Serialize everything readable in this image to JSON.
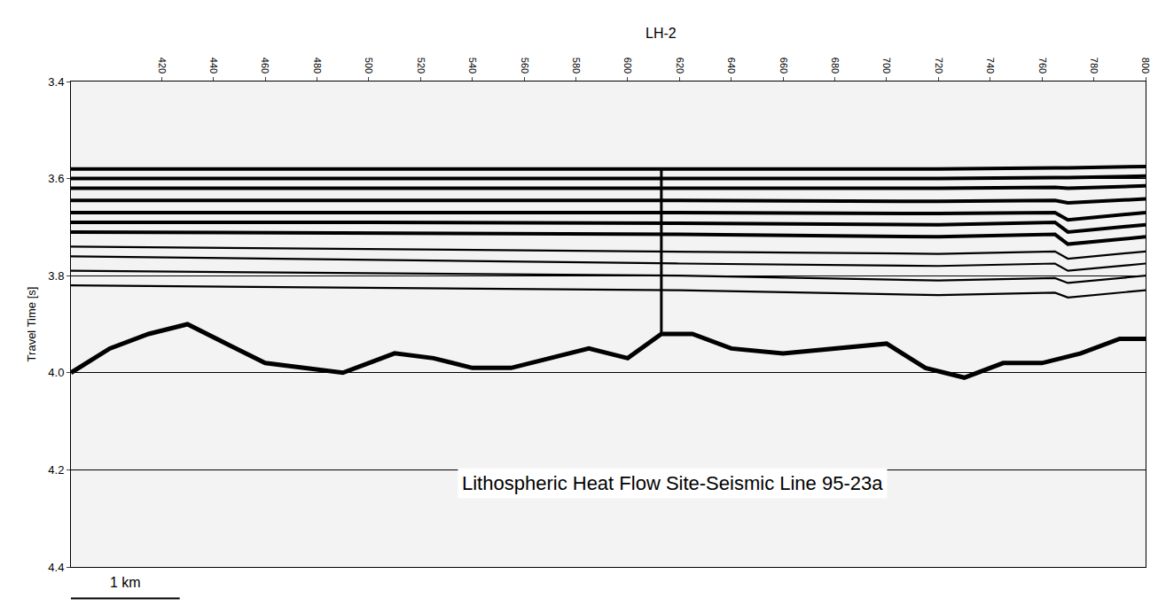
{
  "chart_data": {
    "type": "line",
    "title": "LH-2",
    "y_label": "Travel Time [s]",
    "annotation": "Lithospheric Heat Flow Site-Seismic Line 95-23a",
    "xlim": [
      385,
      800
    ],
    "xticks": [
      420,
      440,
      460,
      480,
      500,
      520,
      540,
      560,
      580,
      600,
      620,
      640,
      660,
      680,
      700,
      720,
      740,
      760,
      780,
      800
    ],
    "ylim": [
      3.4,
      4.4
    ],
    "yticks": [
      3.4,
      3.6,
      3.8,
      {
        "value": 4,
        "label": "4.0"
      },
      4.2,
      4.4
    ],
    "grid": true,
    "borehole": {
      "x": 613,
      "top": 3.58,
      "bottom": 3.92
    },
    "scale_bar": {
      "label": "1 km",
      "x0": 385,
      "x1": 427
    },
    "series": [
      {
        "color": "#000000",
        "x": [
          385,
          500,
          620,
          720,
          765,
          770,
          800
        ],
        "values": [
          3.58,
          3.58,
          3.58,
          3.58,
          3.578,
          3.578,
          3.575
        ]
      },
      {
        "color": "#000000",
        "x": [
          385,
          500,
          620,
          720,
          765,
          770,
          800
        ],
        "values": [
          3.6,
          3.6,
          3.6,
          3.6,
          3.598,
          3.598,
          3.595
        ]
      },
      {
        "color": "#000000",
        "x": [
          385,
          500,
          620,
          720,
          765,
          770,
          800
        ],
        "values": [
          3.62,
          3.62,
          3.62,
          3.62,
          3.618,
          3.62,
          3.615
        ]
      },
      {
        "color": "#000000",
        "x": [
          385,
          500,
          620,
          720,
          765,
          770,
          800
        ],
        "values": [
          3.645,
          3.645,
          3.645,
          3.647,
          3.645,
          3.65,
          3.642
        ]
      },
      {
        "color": "#000000",
        "x": [
          385,
          500,
          620,
          720,
          765,
          770,
          800
        ],
        "values": [
          3.67,
          3.67,
          3.67,
          3.672,
          3.67,
          3.685,
          3.67
        ]
      },
      {
        "color": "#000000",
        "x": [
          385,
          500,
          620,
          720,
          765,
          770,
          800
        ],
        "values": [
          3.69,
          3.69,
          3.692,
          3.695,
          3.69,
          3.71,
          3.695
        ]
      },
      {
        "color": "#000000",
        "x": [
          385,
          500,
          620,
          720,
          765,
          770,
          800
        ],
        "values": [
          3.71,
          3.712,
          3.715,
          3.72,
          3.715,
          3.735,
          3.72
        ]
      },
      {
        "color": "#000000",
        "x": [
          385,
          500,
          620,
          720,
          765,
          770,
          800
        ],
        "values": [
          3.74,
          3.745,
          3.75,
          3.755,
          3.75,
          3.765,
          3.75
        ]
      },
      {
        "color": "#000000",
        "x": [
          385,
          500,
          620,
          720,
          765,
          770,
          800
        ],
        "values": [
          3.76,
          3.768,
          3.775,
          3.78,
          3.775,
          3.79,
          3.775
        ]
      },
      {
        "color": "#000000",
        "x": [
          385,
          500,
          620,
          720,
          765,
          770,
          800
        ],
        "values": [
          3.79,
          3.795,
          3.8,
          3.81,
          3.805,
          3.815,
          3.8
        ]
      },
      {
        "color": "#000000",
        "x": [
          385,
          500,
          620,
          720,
          765,
          770,
          800
        ],
        "values": [
          3.82,
          3.825,
          3.83,
          3.84,
          3.835,
          3.845,
          3.83
        ]
      },
      {
        "color": "#000000",
        "x": [
          385,
          400,
          415,
          430,
          445,
          460,
          475,
          490,
          500,
          510,
          525,
          540,
          555,
          570,
          585,
          600,
          613,
          625,
          640,
          660,
          680,
          700,
          715,
          730,
          745,
          760,
          775,
          790,
          800
        ],
        "values": [
          4.0,
          3.95,
          3.92,
          3.9,
          3.94,
          3.98,
          3.99,
          4.0,
          3.98,
          3.96,
          3.97,
          3.99,
          3.99,
          3.97,
          3.95,
          3.97,
          3.92,
          3.92,
          3.95,
          3.96,
          3.95,
          3.94,
          3.99,
          4.01,
          3.98,
          3.98,
          3.96,
          3.93,
          3.93
        ]
      }
    ]
  }
}
